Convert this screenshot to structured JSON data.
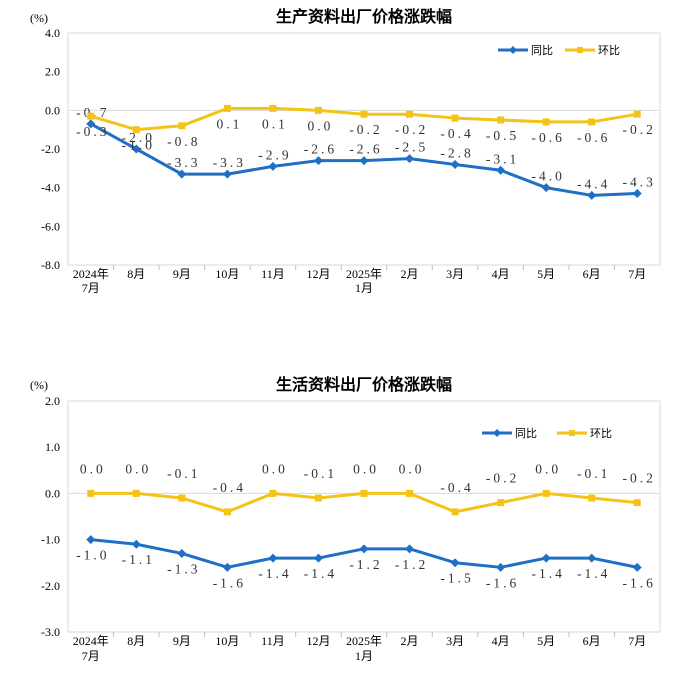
{
  "chart_data": [
    {
      "type": "line",
      "title": "生产资料出厂价格涨跌幅",
      "unit": "(%)",
      "categories": [
        [
          "2024年",
          "7月"
        ],
        [
          "8月"
        ],
        [
          "9月"
        ],
        [
          "10月"
        ],
        [
          "11月"
        ],
        [
          "12月"
        ],
        [
          "2025年",
          "1月"
        ],
        [
          "2月"
        ],
        [
          "3月"
        ],
        [
          "4月"
        ],
        [
          "5月"
        ],
        [
          "6月"
        ],
        [
          "7月"
        ]
      ],
      "ylim": [
        -8.0,
        4.0
      ],
      "yticks": [
        "4.0",
        "2.0",
        "0.0",
        "-2.0",
        "-4.0",
        "-6.0",
        "-8.0"
      ],
      "legend_position": "top-right",
      "series": [
        {
          "name": "同比",
          "color": "#1f6fc5",
          "marker": "diamond",
          "values": [
            -0.7,
            -2.0,
            -3.3,
            -3.3,
            -2.9,
            -2.6,
            -2.6,
            -2.5,
            -2.8,
            -3.1,
            -4.0,
            -4.4,
            -4.3
          ],
          "labels": [
            "-0.7",
            "-2.0",
            "-3.3",
            "-3.3",
            "-2.9",
            "-2.6",
            "-2.6",
            "-2.5",
            "-2.8",
            "-3.1",
            "-4.0",
            "-4.4",
            "-4.3"
          ]
        },
        {
          "name": "环比",
          "color": "#f5c218",
          "marker": "square",
          "values": [
            -0.3,
            -1.0,
            -0.8,
            0.1,
            0.1,
            0.0,
            -0.2,
            -0.2,
            -0.4,
            -0.5,
            -0.6,
            -0.6,
            -0.2
          ],
          "labels": [
            "-0.3",
            "-1.0",
            "-0.8",
            "0.1",
            "0.1",
            "0.0",
            "-0.2",
            "-0.2",
            "-0.4",
            "-0.5",
            "-0.6",
            "-0.6",
            "-0.2"
          ]
        }
      ]
    },
    {
      "type": "line",
      "title": "生活资料出厂价格涨跌幅",
      "unit": "(%)",
      "categories": [
        [
          "2024年",
          "7月"
        ],
        [
          "8月"
        ],
        [
          "9月"
        ],
        [
          "10月"
        ],
        [
          "11月"
        ],
        [
          "12月"
        ],
        [
          "2025年",
          "1月"
        ],
        [
          "2月"
        ],
        [
          "3月"
        ],
        [
          "4月"
        ],
        [
          "5月"
        ],
        [
          "6月"
        ],
        [
          "7月"
        ]
      ],
      "ylim": [
        -3.0,
        2.0
      ],
      "yticks": [
        "2.0",
        "1.0",
        "0.0",
        "-1.0",
        "-2.0",
        "-3.0"
      ],
      "legend_position": "top-right",
      "series": [
        {
          "name": "同比",
          "color": "#1f6fc5",
          "marker": "diamond",
          "values": [
            -1.0,
            -1.1,
            -1.3,
            -1.6,
            -1.4,
            -1.4,
            -1.2,
            -1.2,
            -1.5,
            -1.6,
            -1.4,
            -1.4,
            -1.6
          ],
          "labels": [
            "-1.0",
            "-1.1",
            "-1.3",
            "-1.6",
            "-1.4",
            "-1.4",
            "-1.2",
            "-1.2",
            "-1.5",
            "-1.6",
            "-1.4",
            "-1.4",
            "-1.6"
          ]
        },
        {
          "name": "环比",
          "color": "#f5c218",
          "marker": "square",
          "values": [
            0.0,
            0.0,
            -0.1,
            -0.4,
            0.0,
            -0.1,
            0.0,
            0.0,
            -0.4,
            -0.2,
            0.0,
            -0.1,
            -0.2
          ],
          "labels": [
            "0.0",
            "0.0",
            "-0.1",
            "-0.4",
            "0.0",
            "-0.1",
            "0.0",
            "0.0",
            "-0.4",
            "-0.2",
            "0.0",
            "-0.1",
            "-0.2"
          ]
        }
      ]
    }
  ]
}
